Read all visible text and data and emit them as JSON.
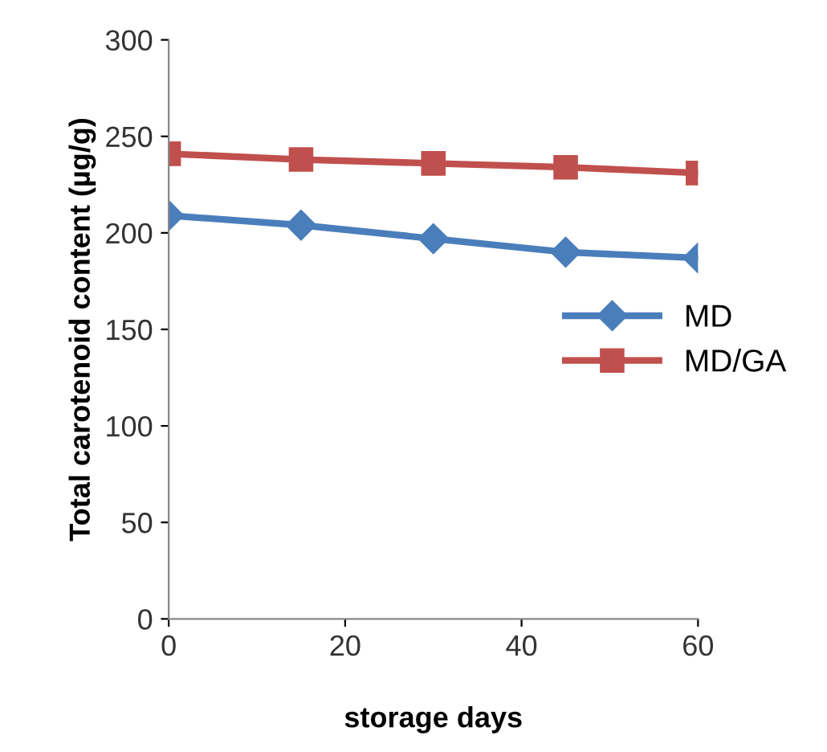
{
  "chart_data": {
    "type": "line",
    "xlabel": "storage days",
    "ylabel": "Total carotenoid content (µg/g)",
    "x": [
      0,
      15,
      30,
      45,
      60
    ],
    "series": [
      {
        "name": "MD",
        "color": "#4a7ebb",
        "marker": "diamond",
        "values": [
          209,
          204,
          197,
          190,
          187
        ]
      },
      {
        "name": "MD/GA",
        "color": "#c0504d",
        "marker": "square",
        "values": [
          241,
          238,
          236,
          234,
          231
        ]
      }
    ],
    "xlim": [
      0,
      60
    ],
    "xticks": [
      0,
      20,
      40,
      60
    ],
    "ylim": [
      0,
      300
    ],
    "yticks": [
      0,
      50,
      100,
      150,
      200,
      250,
      300
    ],
    "grid": false,
    "legend": "right",
    "line_style": "solid"
  }
}
